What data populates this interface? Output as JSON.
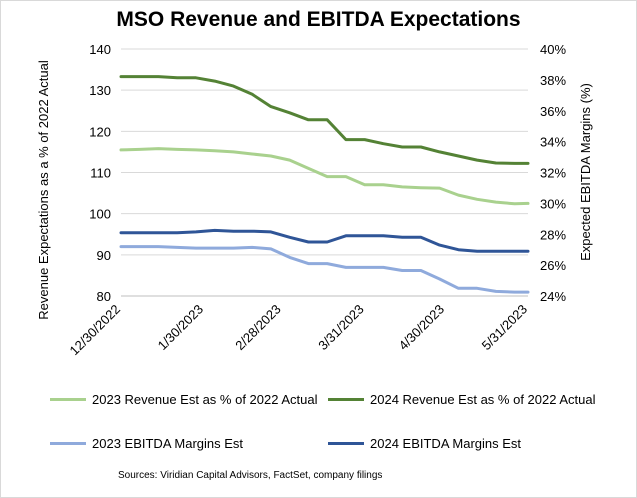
{
  "chart_data": {
    "type": "line",
    "title": "MSO Revenue and EBITDA Expectations",
    "ylabel": "Revenue Expectations as a % of 2022 Actual",
    "y2label": "Expected EBITDA Margins (%)",
    "ylim": [
      80,
      140
    ],
    "yticks": [
      "80",
      "90",
      "100",
      "110",
      "120",
      "130",
      "140"
    ],
    "y2lim": [
      24,
      40
    ],
    "y2ticks": [
      "24%",
      "26%",
      "28%",
      "30%",
      "32%",
      "34%",
      "36%",
      "38%",
      "40%"
    ],
    "xlim": [
      0,
      152
    ],
    "xticks": [
      {
        "day": 0,
        "label": "12/30/2022"
      },
      {
        "day": 31,
        "label": "1/30/2023"
      },
      {
        "day": 60,
        "label": "2/28/2023"
      },
      {
        "day": 91,
        "label": "3/31/2023"
      },
      {
        "day": 121,
        "label": "4/30/2023"
      },
      {
        "day": 152,
        "label": "5/31/2023"
      }
    ],
    "grid": true,
    "legend_position": "bottom",
    "series": [
      {
        "name": "2023 Revenue Est as % of 2022 Actual",
        "axis": "left",
        "color": "#a9d18e",
        "x": [
          0,
          7,
          14,
          21,
          28,
          35,
          42,
          49,
          56,
          63,
          70,
          77,
          84,
          91,
          98,
          105,
          112,
          119,
          126,
          133,
          140,
          147,
          152
        ],
        "y": [
          115.5,
          115.6,
          115.8,
          115.6,
          115.5,
          115.3,
          115.0,
          114.5,
          114.0,
          113.0,
          111.0,
          109.0,
          109.0,
          107.0,
          107.0,
          106.5,
          106.3,
          106.2,
          104.5,
          103.5,
          102.8,
          102.4,
          102.5
        ]
      },
      {
        "name": "2024 Revenue Est as % of 2022 Actual",
        "axis": "left",
        "color": "#548235",
        "x": [
          0,
          7,
          14,
          21,
          28,
          35,
          42,
          49,
          56,
          63,
          70,
          77,
          84,
          91,
          98,
          105,
          112,
          119,
          126,
          133,
          140,
          147,
          152
        ],
        "y": [
          133.3,
          133.3,
          133.3,
          133.0,
          133.0,
          132.2,
          131.0,
          129.0,
          126.0,
          124.5,
          122.8,
          122.8,
          118.0,
          118.0,
          117.0,
          116.2,
          116.2,
          115.0,
          114.0,
          113.0,
          112.3,
          112.2,
          112.2
        ]
      },
      {
        "name": "2023 EBITDA Margins Est",
        "axis": "right",
        "color": "#8faadc",
        "x": [
          0,
          7,
          14,
          21,
          28,
          35,
          42,
          49,
          56,
          63,
          70,
          77,
          84,
          91,
          98,
          105,
          112,
          119,
          126,
          133,
          140,
          147,
          152
        ],
        "y": [
          27.2,
          27.2,
          27.2,
          27.15,
          27.1,
          27.1,
          27.1,
          27.15,
          27.05,
          26.5,
          26.1,
          26.1,
          25.85,
          25.85,
          25.85,
          25.65,
          25.65,
          25.1,
          24.5,
          24.5,
          24.3,
          24.25,
          24.25
        ]
      },
      {
        "name": "2024 EBITDA Margins Est",
        "axis": "right",
        "color": "#2f5597",
        "x": [
          0,
          7,
          14,
          21,
          28,
          35,
          42,
          49,
          56,
          63,
          70,
          77,
          84,
          91,
          98,
          105,
          112,
          119,
          126,
          133,
          140,
          147,
          152
        ],
        "y": [
          28.1,
          28.1,
          28.1,
          28.1,
          28.15,
          28.25,
          28.2,
          28.2,
          28.15,
          27.8,
          27.5,
          27.5,
          27.9,
          27.9,
          27.9,
          27.8,
          27.8,
          27.3,
          27.0,
          26.9,
          26.9,
          26.9,
          26.9
        ]
      }
    ]
  },
  "source_note": "Sources: Viridian Capital Advisors, FactSet, company filings"
}
